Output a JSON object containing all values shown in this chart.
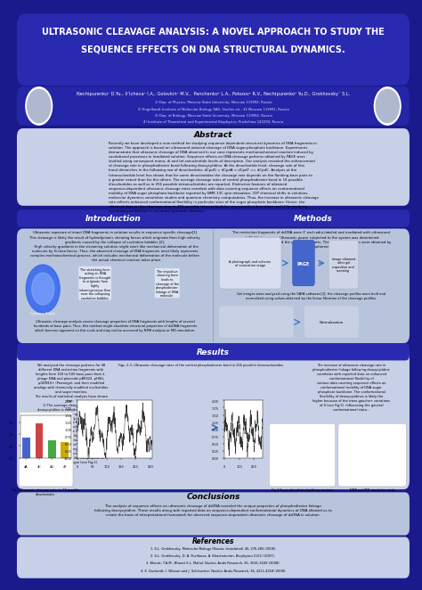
{
  "title_line1": "ULTRASONIC CLEAVAGE ANALYSIS: A NOVEL APPROACH TO STUDY THE",
  "title_line2": "SEQUENCE EFFECTS ON DNA STRUCTURAL DYNAMICS.",
  "authors": "Nechipurenko¹ D.Yu., Ilʼicheva¹ I.A., Golovkin² M.V.,  Panchenko³ L.A., Polozov² R.V., Nechipurenko² Yu.D., Grokhovsky´ S.L.",
  "affil1": "1) Dep. of Physics, Moscow State University, Moscow 119992, Russia",
  "affil2": "2) Engelhardt Institute of Molecular Biology RAS, Vavilov str., 32 Moscow 119991, Russia",
  "affil3": "3) Dep. of Biology, Moscow State University, Moscow 119992, Russia",
  "affil4": "4) Institute of Theoretical and Experimental Biophysics, Pushchino 142290, Russia",
  "bg_dark": "#1a1a8c",
  "bg_medium": "#2a2ab0",
  "bg_light": "#3535c8",
  "panel_bg": "#c8d0e8",
  "panel_bg2": "#b8c4dc",
  "title_color": "#ffffff",
  "abstract_title": "Abstract",
  "abstract_text": "Recently we have developed a new method for studying sequence dependent structural dynamics of DNA fragments in solution. The approach is based on ultrasound-induced cleavage of DNA sugar-phosphate backbone. Experiments demonstrate that ultrasonic cleavage of DNA observed in our case represents mechanochemical reaction induced by cavitational processes in irradiated solution. Sequence effects on DNA cleavage patterns obtained by PAGE were studied using consequent mono, di and tet-ranucleotide levels of description. Our analysis revealed the enhancement of cleavage rate in phosphodiester bond following deoxycytidine. At the dinucleotide level, cleavage rate of this bond diminishes in the following row of dinucleotides: dCpdG > dCpdA > dCpdT >= dCpdC. Analysis at the tetranucleotide level has shown that for some dinucleotides the cleavage rate depends on the flanking base pairs to a greater extent than for the others. The average cleavage rates of central phosphodiester bond in 16 possible dinucleotides as well as in 256 possible tetranucleotides are reported. Distinctive features of obtained sequence-dependent ultrasonic cleavage rates correlate with data covering sequence effects on conformational mobility of DNA sugar phosphate backbone reported by NMR 13C spin relaxation, 31P chemical shifts in solutions, molecular dynamics simulation studies and quantum chemistry computations. Thus, the increase in ultrasonic cleavage rate reflects enhanced conformational flexibility in particular sites of the sugar phosphate backbone. Hence, the obtained data on the cleavage rates in 256 possible tetranucleotides may provide information useful for studying structural peculiarities in functional genomic elements.",
  "intro_title": "Introduction",
  "methods_title": "Methods",
  "results_title": "Results",
  "conclusions_title": "Conclusions",
  "conclusions_text": "The analysis of sequence effects on ultrasonic cleavage of dsDNA revealed the unique properties of phosphodiester linkage following deoxycytidine. These results along with reported data on sequence-dependent conformational dynamics of DNA allowed us to create the basis of interpretational framework for observed sequence-dependent ultrasonic cleavage of dsDNA in solution.",
  "references_title": "References",
  "ref1": "1. S.L. Grokhovsky, Molecular Biology (Russia, translated) 40, 276-283 (2006).",
  "ref2": "2. S.L. Grokhovsky, D. A. Puchkova, A. Khachaturian, Biophysics 52(1) (2007).",
  "ref3": "3. Bharat, T.A.M., Bharat S.L. Mahal, Nucleic Acids Research, 36, 3041-3049 (2008).",
  "ref4": "4. E. Duchardt, I. Nilsson and J. Schleucher, Nucleic Acids Research, 36, 4211-4218 (2008)."
}
